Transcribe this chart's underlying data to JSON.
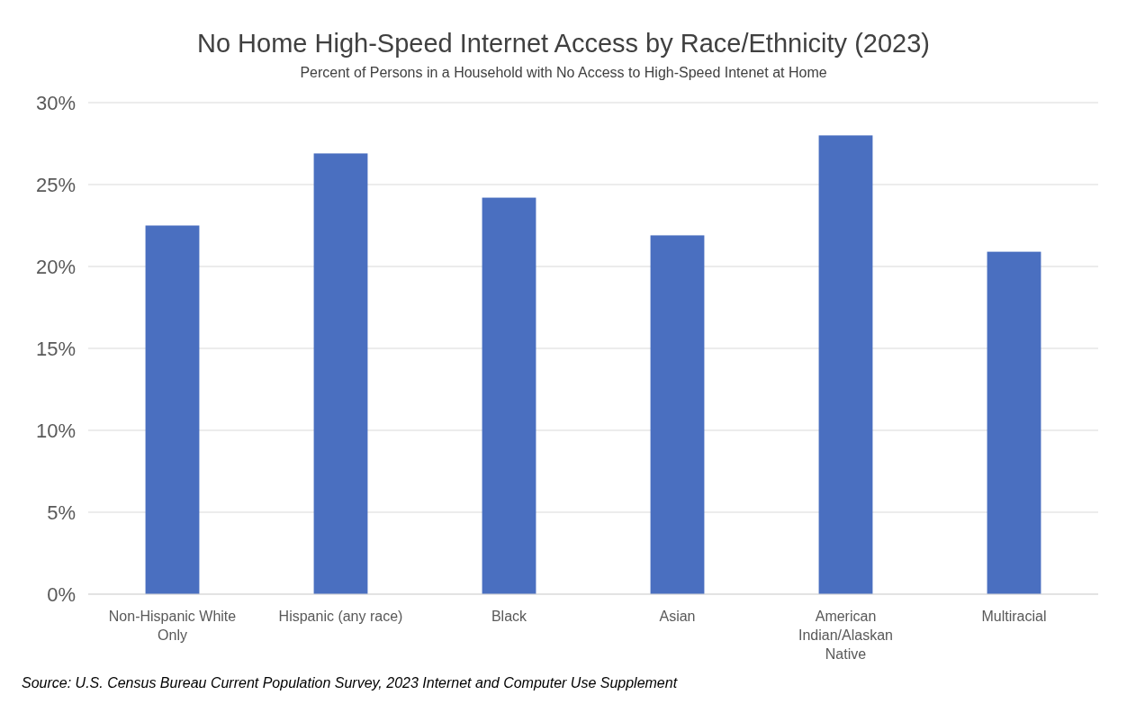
{
  "chart_data": {
    "type": "bar",
    "title": "No Home High-Speed Internet Access by Race/Ethnicity (2023)",
    "subtitle": "Percent of Persons in a Household with No Access to High-Speed Intenet at Home",
    "categories": [
      "Non-Hispanic White Only",
      "Hispanic (any race)",
      "Black",
      "Asian",
      "American Indian/Alaskan Native",
      "Multiracial"
    ],
    "values": [
      22.5,
      26.9,
      24.2,
      21.9,
      28.0,
      20.9
    ],
    "color": "#4a6fc0",
    "ylim": [
      0,
      30
    ],
    "yticks": [
      {
        "value": 0,
        "label": "0%"
      },
      {
        "value": 5,
        "label": "5%"
      },
      {
        "value": 10,
        "label": "10%"
      },
      {
        "value": 15,
        "label": "15%"
      },
      {
        "value": 20,
        "label": "20%"
      },
      {
        "value": 25,
        "label": "25%"
      },
      {
        "value": 30,
        "label": "30%"
      }
    ],
    "grid": "y",
    "annotations": [
      "Source: U.S. Census Bureau Current Population Survey, 2023 Internet and Computer Use Supplement"
    ]
  }
}
